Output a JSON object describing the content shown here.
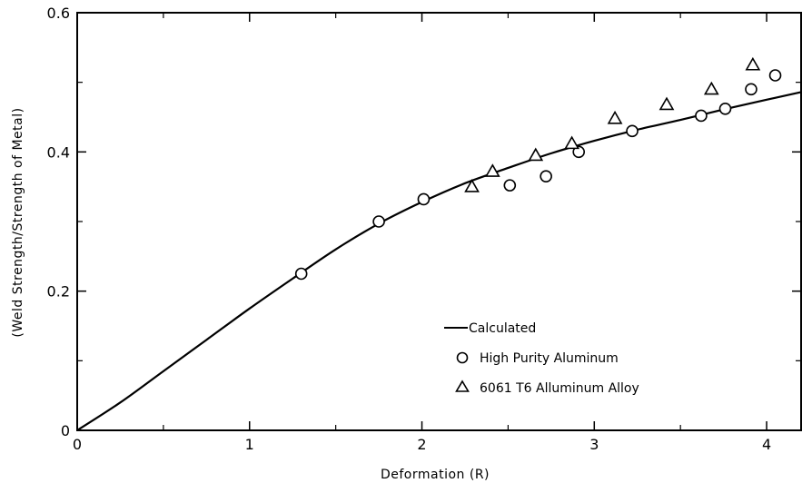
{
  "chart_data": {
    "type": "scatter",
    "xlabel": "Deformation  (R)",
    "ylabel": "(Weld Strength/Strength of Metal)",
    "xlim": [
      0,
      4.2
    ],
    "ylim": [
      0,
      0.6
    ],
    "x_ticks": [
      0,
      1,
      2,
      3,
      4
    ],
    "y_ticks": [
      0,
      0.2,
      0.4,
      0.6
    ],
    "x_tick_labels": [
      "0",
      "1",
      "2",
      "3",
      "4"
    ],
    "y_tick_labels": [
      "0",
      "0.2",
      "0.4",
      "0.6"
    ],
    "grid": false,
    "legend_position": "bottom-right",
    "series": [
      {
        "name": "Calculated",
        "style": "line",
        "x": [
          0,
          0.25,
          0.5,
          0.75,
          1.0,
          1.25,
          1.5,
          1.75,
          2.0,
          2.25,
          2.5,
          2.75,
          3.0,
          3.25,
          3.5,
          3.75,
          4.0,
          4.2
        ],
        "y": [
          0,
          0.04,
          0.085,
          0.13,
          0.175,
          0.218,
          0.26,
          0.297,
          0.328,
          0.355,
          0.377,
          0.398,
          0.416,
          0.432,
          0.446,
          0.461,
          0.475,
          0.486
        ]
      },
      {
        "name": "High Purity Aluminum",
        "style": "circle",
        "x": [
          1.3,
          1.75,
          2.01,
          2.51,
          2.72,
          2.91,
          3.22,
          3.62,
          3.76,
          3.91,
          4.05
        ],
        "y": [
          0.225,
          0.3,
          0.332,
          0.352,
          0.365,
          0.4,
          0.43,
          0.452,
          0.462,
          0.49,
          0.51
        ]
      },
      {
        "name": "6061 T6 Alluminum Alloy",
        "style": "triangle",
        "x": [
          2.29,
          2.41,
          2.66,
          2.87,
          3.12,
          3.42,
          3.68,
          3.92
        ],
        "y": [
          0.35,
          0.372,
          0.395,
          0.412,
          0.448,
          0.468,
          0.49,
          0.525
        ]
      }
    ]
  }
}
